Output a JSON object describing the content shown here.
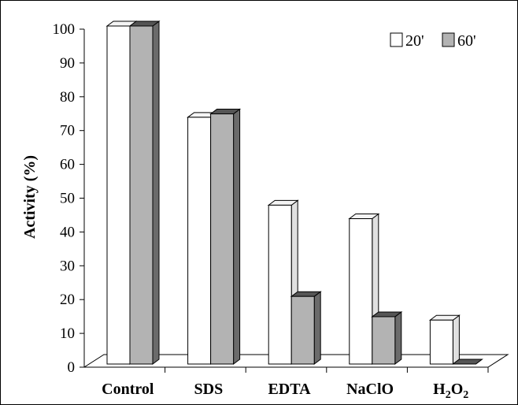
{
  "chart_data": {
    "type": "bar",
    "title": "",
    "xlabel": "",
    "ylabel": "Activity (%)",
    "ylim": [
      0,
      100
    ],
    "yticks": [
      0,
      10,
      20,
      30,
      40,
      50,
      60,
      70,
      80,
      90,
      100
    ],
    "categories": [
      "Control",
      "SDS",
      "EDTA",
      "NaClO",
      "H2O2"
    ],
    "series": [
      {
        "name": "20'",
        "values": [
          100,
          73,
          47,
          43,
          13
        ]
      },
      {
        "name": "60'",
        "values": [
          100,
          74,
          20,
          14,
          0
        ]
      }
    ],
    "legend_position": "top-right",
    "grid": false,
    "colors": {
      "20'": "#ffffff",
      "60'": "#b3b3b3"
    }
  }
}
